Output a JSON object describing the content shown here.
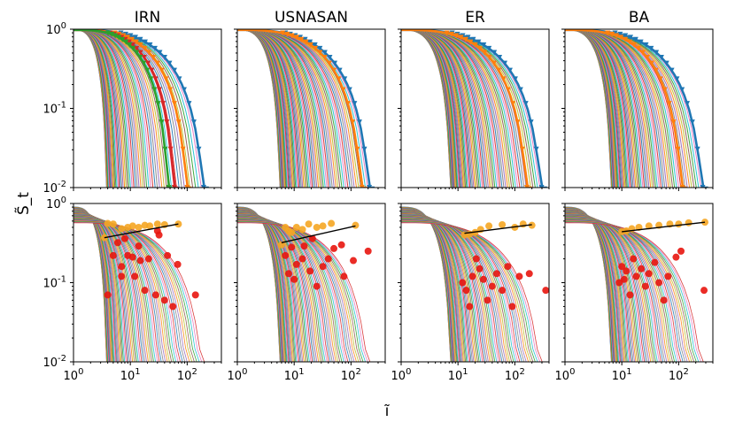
{
  "figure": {
    "ylabel": "S̃_t",
    "xlabel": "ĩ"
  },
  "chart_data": {
    "type": "line",
    "grid": false,
    "xscale": "log",
    "yscale": "log",
    "xlim": [
      1,
      400
    ],
    "ylim": [
      0.01,
      1
    ],
    "x_ticks": [
      1,
      10,
      100
    ],
    "x_tick_labels": [
      "10^0",
      "10^1",
      "10^2"
    ],
    "y_ticks": [
      0.01,
      0.1,
      1
    ],
    "y_tick_labels": [
      "10^-2",
      "10^-1",
      "10^0"
    ],
    "columns": [
      "IRN",
      "USNASAN",
      "ER",
      "BA"
    ],
    "rows": [
      {
        "panels": [
          {
            "column": "IRN",
            "markers": true,
            "curves": [
              {
                "n": 60,
                "start": 0.98,
                "end_min": 4,
                "end_max": 240
              },
              {
                "end": 240,
                "color": "#1f77b4"
              },
              {
                "end": 120,
                "color": "#ff7f0e"
              },
              {
                "end": 70,
                "color": "#d62728"
              },
              {
                "end": 55,
                "color": "#2ca02c"
              }
            ]
          },
          {
            "column": "USNASAN",
            "markers": true,
            "curves": [
              {
                "n": 70,
                "start": 0.98,
                "end_min": 6,
                "end_max": 260
              },
              {
                "end": 260,
                "color": "#1f77b4"
              },
              {
                "end": 190,
                "color": "#ff7f0e"
              }
            ]
          },
          {
            "column": "ER",
            "markers": true,
            "curves": [
              {
                "n": 70,
                "start": 0.98,
                "end_min": 8,
                "end_max": 370
              },
              {
                "end": 370,
                "color": "#1f77b4"
              },
              {
                "end": 200,
                "color": "#ff7f0e"
              }
            ]
          },
          {
            "column": "BA",
            "markers": true,
            "curves": [
              {
                "n": 70,
                "start": 0.98,
                "end_min": 7,
                "end_max": 330
              },
              {
                "end": 330,
                "color": "#1f77b4"
              },
              {
                "end": 140,
                "color": "#ff7f0e"
              }
            ]
          }
        ]
      },
      {
        "panels": [
          {
            "column": "IRN",
            "fit_line": {
              "x": [
                3.5,
                70
              ],
              "y": [
                0.37,
                0.55
              ]
            },
            "orange_points": [
              [
                3.5,
                0.37
              ],
              [
                4,
                0.56
              ],
              [
                5,
                0.55
              ],
              [
                7,
                0.48
              ],
              [
                9,
                0.5
              ],
              [
                11,
                0.52
              ],
              [
                14,
                0.5
              ],
              [
                18,
                0.53
              ],
              [
                22,
                0.52
              ],
              [
                30,
                0.55
              ],
              [
                40,
                0.54
              ],
              [
                70,
                0.55
              ]
            ],
            "red_points": [
              [
                4,
                0.07
              ],
              [
                5,
                0.22
              ],
              [
                6,
                0.32
              ],
              [
                7,
                0.12
              ],
              [
                7,
                0.16
              ],
              [
                8,
                0.36
              ],
              [
                9,
                0.22
              ],
              [
                11,
                0.21
              ],
              [
                12,
                0.12
              ],
              [
                14,
                0.29
              ],
              [
                15,
                0.19
              ],
              [
                18,
                0.08
              ],
              [
                21,
                0.2
              ],
              [
                28,
                0.07
              ],
              [
                30,
                0.45
              ],
              [
                32,
                0.4
              ],
              [
                40,
                0.06
              ],
              [
                45,
                0.22
              ],
              [
                56,
                0.05
              ],
              [
                68,
                0.17
              ],
              [
                140,
                0.07
              ]
            ]
          },
          {
            "column": "USNASAN",
            "fit_line": {
              "x": [
                6,
                120
              ],
              "y": [
                0.32,
                0.52
              ]
            },
            "orange_points": [
              [
                6,
                0.3
              ],
              [
                7,
                0.5
              ],
              [
                8,
                0.45
              ],
              [
                9,
                0.43
              ],
              [
                11,
                0.5
              ],
              [
                14,
                0.47
              ],
              [
                18,
                0.55
              ],
              [
                25,
                0.5
              ],
              [
                32,
                0.52
              ],
              [
                45,
                0.56
              ],
              [
                120,
                0.53
              ]
            ],
            "red_points": [
              [
                7,
                0.22
              ],
              [
                8,
                0.13
              ],
              [
                9,
                0.28
              ],
              [
                10,
                0.11
              ],
              [
                11,
                0.17
              ],
              [
                14,
                0.2
              ],
              [
                15,
                0.29
              ],
              [
                19,
                0.14
              ],
              [
                21,
                0.36
              ],
              [
                25,
                0.09
              ],
              [
                32,
                0.16
              ],
              [
                40,
                0.2
              ],
              [
                50,
                0.27
              ],
              [
                68,
                0.3
              ],
              [
                75,
                0.12
              ],
              [
                110,
                0.19
              ],
              [
                200,
                0.25
              ]
            ]
          },
          {
            "column": "ER",
            "fit_line": {
              "x": [
                13,
                200
              ],
              "y": [
                0.42,
                0.54
              ]
            },
            "orange_points": [
              [
                13,
                0.4
              ],
              [
                16,
                0.41
              ],
              [
                20,
                0.43
              ],
              [
                25,
                0.47
              ],
              [
                35,
                0.52
              ],
              [
                60,
                0.54
              ],
              [
                100,
                0.5
              ],
              [
                140,
                0.55
              ],
              [
                200,
                0.53
              ]
            ],
            "red_points": [
              [
                12,
                0.1
              ],
              [
                14,
                0.08
              ],
              [
                16,
                0.05
              ],
              [
                18,
                0.12
              ],
              [
                21,
                0.2
              ],
              [
                24,
                0.15
              ],
              [
                28,
                0.11
              ],
              [
                33,
                0.06
              ],
              [
                40,
                0.09
              ],
              [
                48,
                0.13
              ],
              [
                60,
                0.08
              ],
              [
                75,
                0.16
              ],
              [
                90,
                0.05
              ],
              [
                120,
                0.12
              ],
              [
                180,
                0.13
              ],
              [
                350,
                0.08
              ]
            ]
          },
          {
            "column": "BA",
            "fit_line": {
              "x": [
                10,
                290
              ],
              "y": [
                0.44,
                0.58
              ]
            },
            "orange_points": [
              [
                10,
                0.44
              ],
              [
                12,
                0.45
              ],
              [
                15,
                0.48
              ],
              [
                20,
                0.5
              ],
              [
                30,
                0.52
              ],
              [
                45,
                0.53
              ],
              [
                70,
                0.55
              ],
              [
                100,
                0.55
              ],
              [
                150,
                0.57
              ],
              [
                290,
                0.58
              ]
            ],
            "red_points": [
              [
                9,
                0.1
              ],
              [
                10,
                0.16
              ],
              [
                11,
                0.11
              ],
              [
                12,
                0.14
              ],
              [
                14,
                0.07
              ],
              [
                16,
                0.2
              ],
              [
                18,
                0.12
              ],
              [
                22,
                0.15
              ],
              [
                26,
                0.09
              ],
              [
                30,
                0.13
              ],
              [
                38,
                0.18
              ],
              [
                45,
                0.1
              ],
              [
                55,
                0.06
              ],
              [
                65,
                0.12
              ],
              [
                90,
                0.21
              ],
              [
                110,
                0.25
              ],
              [
                280,
                0.08
              ]
            ]
          }
        ]
      }
    ]
  }
}
